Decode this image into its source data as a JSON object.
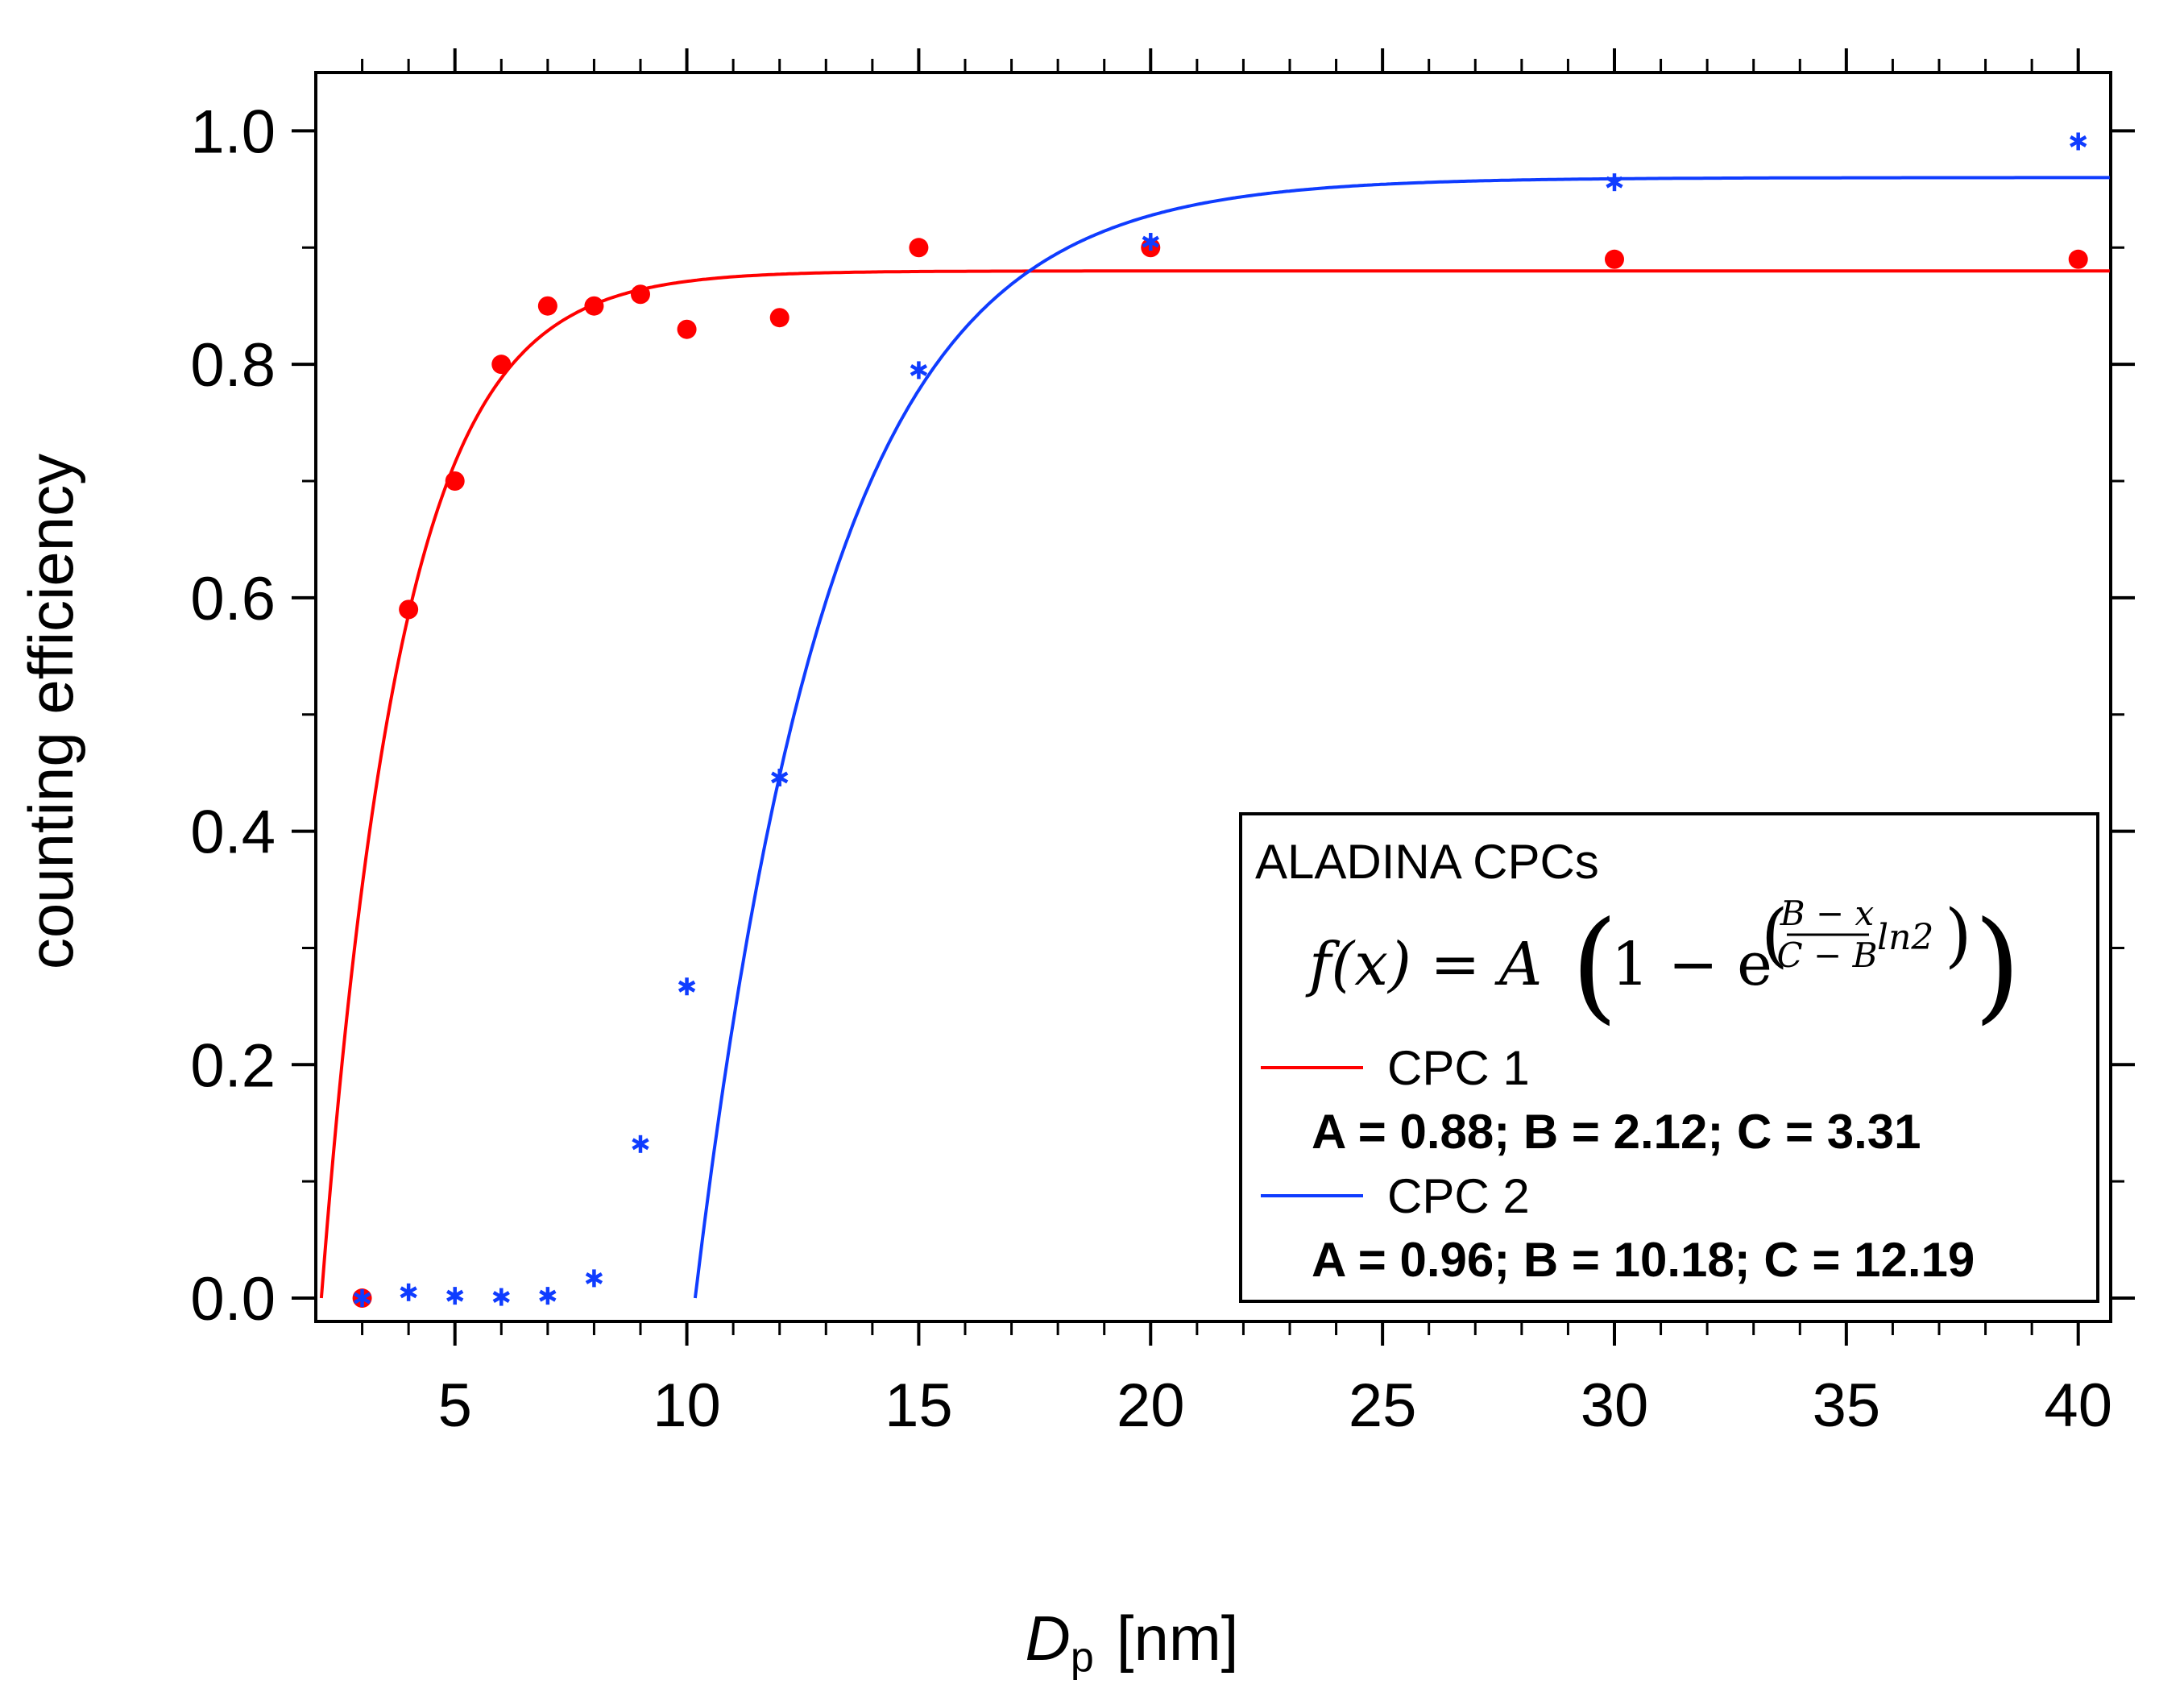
{
  "chart_data": {
    "type": "scatter",
    "xlabel_main": "D",
    "xlabel_sub": "p",
    "xlabel_unit": "[nm]",
    "ylabel": "counting efficiency",
    "xlim": [
      2,
      40.7
    ],
    "ylim": [
      -0.02,
      1.05
    ],
    "xticks_major": [
      5,
      10,
      15,
      20,
      25,
      30,
      35,
      40
    ],
    "yticks_major": [
      0.0,
      0.2,
      0.4,
      0.6,
      0.8,
      1.0
    ],
    "ytick_labels": [
      "0.0",
      "0.2",
      "0.4",
      "0.6",
      "0.8",
      "1.0"
    ],
    "legend": {
      "title": "ALADINA CPCs",
      "formula": {
        "lhs": "f(x) = A",
        "one_minus": "1 − e",
        "num": "B − x",
        "den": "C − B",
        "ln": "ln2"
      },
      "position": "bottom-right"
    },
    "series": [
      {
        "name": "CPC 1",
        "color": "#ff0000",
        "marker": "circle",
        "params_label": "A = 0.88; B = 2.12; C = 3.31",
        "fit": {
          "A": 0.88,
          "B": 2.12,
          "C": 3.31
        },
        "points": [
          [
            3,
            0.0
          ],
          [
            4,
            0.59
          ],
          [
            5,
            0.7
          ],
          [
            6,
            0.8
          ],
          [
            7,
            0.85
          ],
          [
            8,
            0.85
          ],
          [
            9,
            0.86
          ],
          [
            10,
            0.83
          ],
          [
            12,
            0.84
          ],
          [
            15,
            0.9
          ],
          [
            20,
            0.9
          ],
          [
            30,
            0.89
          ],
          [
            40,
            0.89
          ]
        ]
      },
      {
        "name": "CPC 2",
        "color": "#0f3cff",
        "marker": "asterisk",
        "params_label": "A = 0.96; B = 10.18; C = 12.19",
        "fit": {
          "A": 0.96,
          "B": 10.18,
          "C": 12.19
        },
        "points": [
          [
            3,
            0.0
          ],
          [
            4,
            0.005
          ],
          [
            5,
            0.002
          ],
          [
            6,
            0.001
          ],
          [
            7,
            0.002
          ],
          [
            8,
            0.017
          ],
          [
            9,
            0.132
          ],
          [
            10,
            0.267
          ],
          [
            12,
            0.446
          ],
          [
            15,
            0.795
          ],
          [
            20,
            0.905
          ],
          [
            30,
            0.956
          ],
          [
            40,
            0.991
          ]
        ]
      }
    ]
  }
}
